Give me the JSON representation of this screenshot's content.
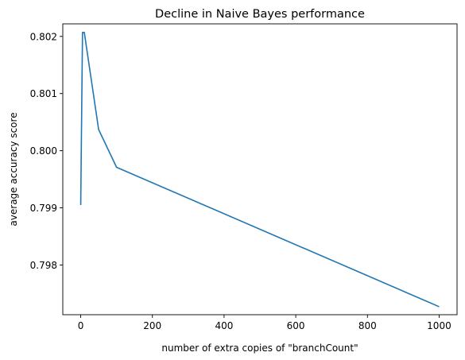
{
  "chart_data": {
    "type": "line",
    "title": "Decline in Naive Bayes performance",
    "xlabel": "number of extra copies of \"branchCount\"",
    "ylabel": "average accuracy score",
    "xlim": [
      -50,
      1050
    ],
    "ylim": [
      0.79713,
      0.80222
    ],
    "xticks": [
      0,
      200,
      400,
      600,
      800,
      1000
    ],
    "yticks": [
      0.798,
      0.799,
      0.8,
      0.801,
      0.802
    ],
    "ytick_decimals": 3,
    "grid": false,
    "legend": "none",
    "series": [
      {
        "color": "#1f77b4",
        "x": [
          0,
          5,
          10,
          50,
          100,
          1000
        ],
        "y": [
          0.79905,
          0.80207,
          0.80207,
          0.80037,
          0.79971,
          0.79727
        ]
      }
    ]
  }
}
